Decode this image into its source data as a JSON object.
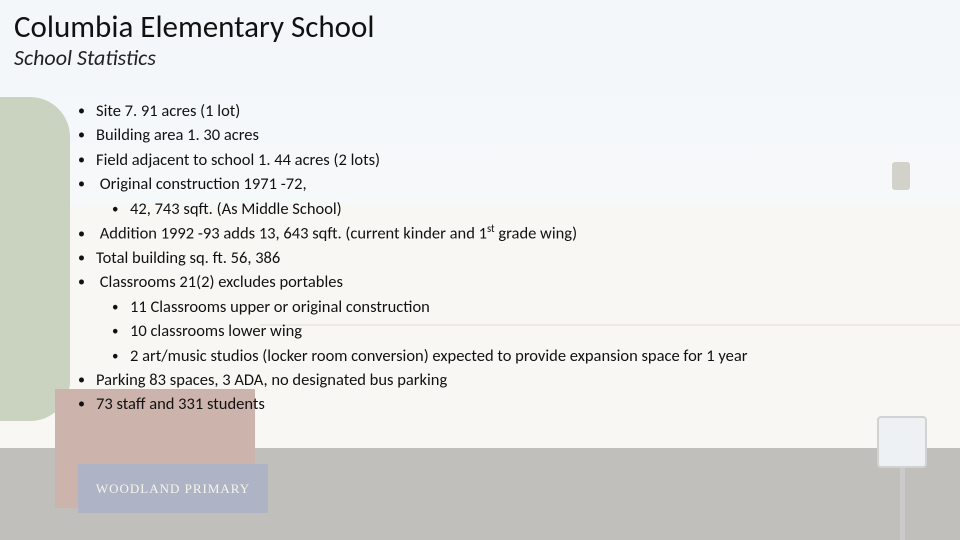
{
  "title": "Columbia Elementary School",
  "subtitle": "School Statistics",
  "sign_text": "WOODLAND  PRIMARY",
  "bullets": {
    "b1": "Site 7. 91 acres (1 lot)",
    "b2": "Building area 1. 30 acres",
    "b3": "Field adjacent to school 1. 44 acres (2 lots)",
    "b4": "Original construction 1971 -72,",
    "b4a": "42, 743 sqft. (As Middle School)",
    "b5_pre": "Addition 1992 -93 adds 13, 643 sqft. (current kinder and 1",
    "b5_sup": "st",
    "b5_post": " grade wing)",
    "b6": "Total building sq. ft. 56, 386",
    "b7": "Classrooms 21(2) excludes portables",
    "b7a": "11 Classrooms upper or original construction",
    "b7b": "10 classrooms lower wing",
    "b7c": "2 art/music studios (locker room conversion) expected to provide expansion space for 1 year",
    "b8": "Parking 83 spaces, 3 ADA, no designated bus parking",
    "b9": "73 staff and 331 students"
  },
  "colors": {
    "text": "#1a1a1a",
    "overlay": "rgba(255,255,255,0.62)",
    "sign_bg": "#2a3a6a",
    "sign_fg": "#e7e2c9"
  }
}
